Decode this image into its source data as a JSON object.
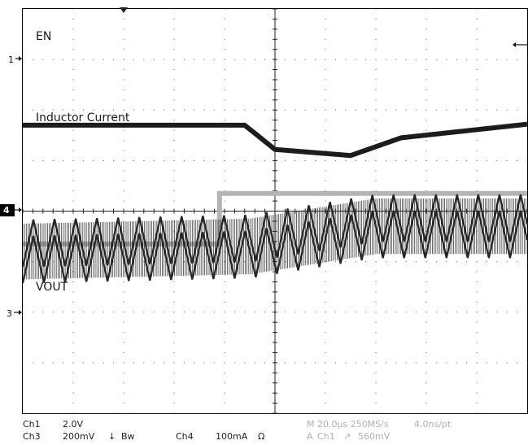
{
  "channels": {
    "en": {
      "label": "EN",
      "marker": "1"
    },
    "inductor": {
      "label": "Inductor Current",
      "marker": "4"
    },
    "vout": {
      "label": "VOUT",
      "marker": "3"
    }
  },
  "status": {
    "ch1": {
      "name": "Ch1",
      "scale": "2.0V"
    },
    "ch3": {
      "name": "Ch3",
      "scale": "200mV",
      "coupling": "↓",
      "bw": "Bw"
    },
    "ch4": {
      "name": "Ch4",
      "scale": "100mA",
      "impedance": "Ω"
    },
    "timebase": "M 20.0µs 250MS/s",
    "resolution": "4.0ns/pt",
    "trigger": {
      "prefix": "A",
      "source": "Ch1",
      "slope": "↗",
      "level": "560mV"
    }
  },
  "colors": {
    "en_trace": "#b4b4b4",
    "inductor_trace": "#262626",
    "vout_trace": "#1c1c1c",
    "grid": "#000000",
    "marker_bg": "#000000"
  },
  "chart_data": {
    "type": "line",
    "x_units": "divisions",
    "x_range": [
      0,
      10
    ],
    "y_range": [
      -4,
      4
    ],
    "grid_divisions": {
      "x": 10,
      "y": 8
    },
    "trigger_position_div": 3.9,
    "series": [
      {
        "name": "EN",
        "x": [
          0,
          3.9,
          3.9,
          10
        ],
        "y": [
          -0.65,
          -0.65,
          0.35,
          0.35
        ]
      },
      {
        "name": "Inductor Current",
        "x": [
          0,
          4.5,
          7,
          10
        ],
        "y_center": [
          -0.8,
          -0.7,
          -0.3,
          -0.3
        ],
        "ripple_pp": [
          1.1,
          1.1,
          1.1,
          1.1
        ],
        "cycle_div": 0.42
      },
      {
        "name": "VOUT",
        "x": [
          0,
          4.4,
          5,
          6.5,
          7.5,
          10
        ],
        "y": [
          1.7,
          1.7,
          1.22,
          1.1,
          1.45,
          1.72
        ]
      }
    ]
  }
}
